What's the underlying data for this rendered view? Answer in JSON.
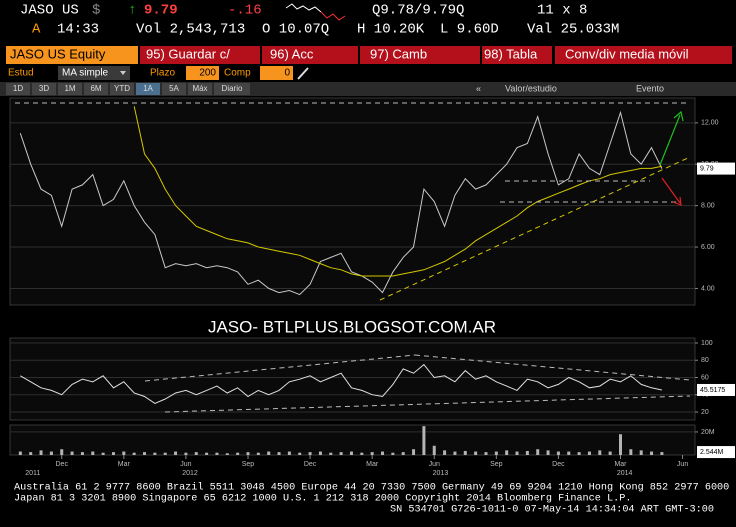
{
  "header": {
    "ticker": "JASO US",
    "currency": "$",
    "last": "9.79",
    "change": "-.16",
    "quote": "Q9.78/9.79Q",
    "size": "11 x 8",
    "flag": "A",
    "time": "14:33",
    "volume": "Vol 2,543,713",
    "open": "O 10.07Q",
    "high": "H 10.20K",
    "low": "L 9.60D",
    "value": "Val 25.033M"
  },
  "toolbar": {
    "security": "JASO US Equity",
    "buttons": [
      "95) Guardar c/",
      "96) Acc",
      "97) Camb",
      "98) Tabla",
      "Conv/div media móvil"
    ]
  },
  "study": {
    "label": "Estud",
    "type": "MA simple",
    "period_label": "Plazo",
    "period": "200",
    "comp_label": "Comp",
    "comp": "0"
  },
  "tabs": [
    "1D",
    "3D",
    "1M",
    "6M",
    "YTD",
    "1A",
    "5A",
    "Máx",
    "Diario"
  ],
  "active_tab": 5,
  "right_tabs": [
    "Valor/estudio",
    "Evento"
  ],
  "watermark": "JASO- BTLPLUS.BLOGSOT.COM.AR",
  "time_axis": {
    "x": [
      0,
      0.5,
      1,
      1.5,
      2,
      2.5,
      3,
      3.5,
      4,
      4.5,
      5,
      5.5,
      6,
      6.5,
      7,
      7.5,
      8,
      8.5,
      9,
      9.5,
      10,
      10.5,
      11,
      11.5,
      12,
      12.5,
      13,
      13.5,
      14,
      14.5,
      15,
      15.5,
      16,
      16.5,
      17,
      17.5,
      18,
      18.5,
      19,
      19.5,
      20,
      20.5,
      21,
      21.5,
      22,
      22.5,
      23,
      23.5,
      24,
      24.5,
      25,
      25.5,
      26,
      26.5,
      27,
      27.5,
      28,
      28.5,
      29,
      29.5,
      30,
      30.5,
      31
    ],
    "xlim": [
      -0.5,
      32.6
    ],
    "xticks": [
      {
        "value": 2,
        "label": "Dec"
      },
      {
        "value": 5,
        "label": "Mar"
      },
      {
        "value": 8,
        "label": "Jun"
      },
      {
        "value": 11,
        "label": "Sep"
      },
      {
        "value": 14,
        "label": "Dec"
      },
      {
        "value": 17,
        "label": "Mar"
      },
      {
        "value": 20,
        "label": "Jun"
      },
      {
        "value": 23,
        "label": "Sep"
      },
      {
        "value": 26,
        "label": "Dec"
      },
      {
        "value": 29,
        "label": "Mar"
      },
      {
        "value": 32,
        "label": "Jun"
      }
    ],
    "years": [
      {
        "value": 0.6,
        "label": "2011"
      },
      {
        "value": 8.2,
        "label": "2012"
      },
      {
        "value": 20.3,
        "label": "2013"
      },
      {
        "value": 29.2,
        "label": "2014"
      }
    ]
  },
  "chart_data": [
    {
      "type": "line",
      "ylim": [
        3.2,
        13.2
      ],
      "grid": true,
      "yticks": [
        {
          "value": 4,
          "label": "4.00"
        },
        {
          "value": 6,
          "label": "6.00"
        },
        {
          "value": 8,
          "label": "8.00"
        },
        {
          "value": 10,
          "label": "10.00"
        },
        {
          "value": 12,
          "label": "12.00"
        }
      ],
      "series": [
        {
          "color": "#c8c8c8",
          "values": [
            11.5,
            10.0,
            8.8,
            8.5,
            7.0,
            8.8,
            9.0,
            9.5,
            8.0,
            8.3,
            9.2,
            8.0,
            7.2,
            6.6,
            5.0,
            5.2,
            5.1,
            5.2,
            5.0,
            5.1,
            5.0,
            4.8,
            4.2,
            4.4,
            4.0,
            3.8,
            3.9,
            3.7,
            4.2,
            5.3,
            5.5,
            5.7,
            4.8,
            4.6,
            4.3,
            3.8,
            4.8,
            5.5,
            6.0,
            8.8,
            8.2,
            7.0,
            8.5,
            9.3,
            8.8,
            9.0,
            9.5,
            10.0,
            10.8,
            11.0,
            12.3,
            10.5,
            9.0,
            9.3,
            10.5,
            9.8,
            9.5,
            11.0,
            12.5,
            10.5,
            10.0,
            10.8,
            9.79
          ]
        },
        {
          "color": "#d4c800",
          "values": [
            null,
            null,
            null,
            null,
            null,
            null,
            null,
            null,
            null,
            null,
            null,
            12.8,
            10.5,
            9.8,
            8.8,
            8.0,
            7.5,
            7.0,
            6.8,
            6.6,
            6.4,
            6.3,
            6.2,
            6.0,
            5.9,
            5.8,
            5.7,
            5.6,
            5.4,
            5.2,
            5.0,
            4.9,
            4.7,
            4.6,
            4.6,
            4.6,
            4.6,
            4.7,
            4.8,
            4.9,
            5.1,
            5.3,
            5.6,
            5.9,
            6.3,
            6.6,
            6.9,
            7.2,
            7.5,
            7.9,
            8.2,
            8.4,
            8.6,
            8.8,
            9.0,
            9.2,
            9.3,
            9.5,
            9.6,
            9.7,
            9.8,
            9.8,
            9.9
          ]
        }
      ]
    },
    {
      "type": "line",
      "ylim": [
        10.7,
        105.8
      ],
      "grid": true,
      "yticks": [
        20,
        40,
        60,
        80,
        100
      ],
      "color": "#e0e0e0",
      "values": [
        62,
        55,
        48,
        45,
        40,
        52,
        58,
        55,
        62,
        48,
        55,
        42,
        38,
        30,
        35,
        42,
        45,
        40,
        45,
        50,
        42,
        48,
        38,
        45,
        40,
        45,
        55,
        58,
        62,
        55,
        60,
        65,
        48,
        45,
        40,
        38,
        52,
        70,
        65,
        75,
        60,
        62,
        55,
        68,
        58,
        62,
        55,
        50,
        45,
        58,
        55,
        48,
        52,
        60,
        55,
        48,
        50,
        58,
        55,
        62,
        52,
        48,
        45.5175
      ]
    },
    {
      "type": "bar",
      "ylim": [
        0,
        26
      ],
      "grid": true,
      "yticks": [
        {
          "value": 20,
          "label": "20M"
        }
      ],
      "color": "#b4b4b4",
      "last_label": "2.544M",
      "values": [
        3,
        2.5,
        4,
        3,
        5,
        3,
        2.5,
        3,
        2,
        2.5,
        3,
        2,
        2.5,
        2,
        2,
        3,
        2,
        2.5,
        2,
        2,
        1.5,
        2,
        2.5,
        2,
        3,
        2.5,
        3,
        2,
        2.5,
        3,
        2,
        2.5,
        3,
        2,
        2.5,
        3,
        2,
        2.5,
        5,
        25,
        8,
        4,
        3,
        3.5,
        3,
        2.5,
        3,
        4,
        3,
        3.5,
        5,
        4,
        3,
        3,
        2.5,
        3,
        4,
        3,
        18,
        5,
        4,
        3,
        2.544
      ]
    }
  ],
  "footer": [
    "Australia 61 2 9777 8600 Brazil 5511 3048 4500 Europe 44 20 7330 7500 Germany 49 69 9204 1210 Hong Kong 852 2977 6000",
    "Japan 81 3 3201 8900         Singapore 65 6212 1000         U.S. 1 212 318 2000         Copyright 2014 Bloomberg Finance L.P.",
    "SN 534701 G726-1011-0 07-May-14 14:34:04 ART  GMT-3:00"
  ]
}
